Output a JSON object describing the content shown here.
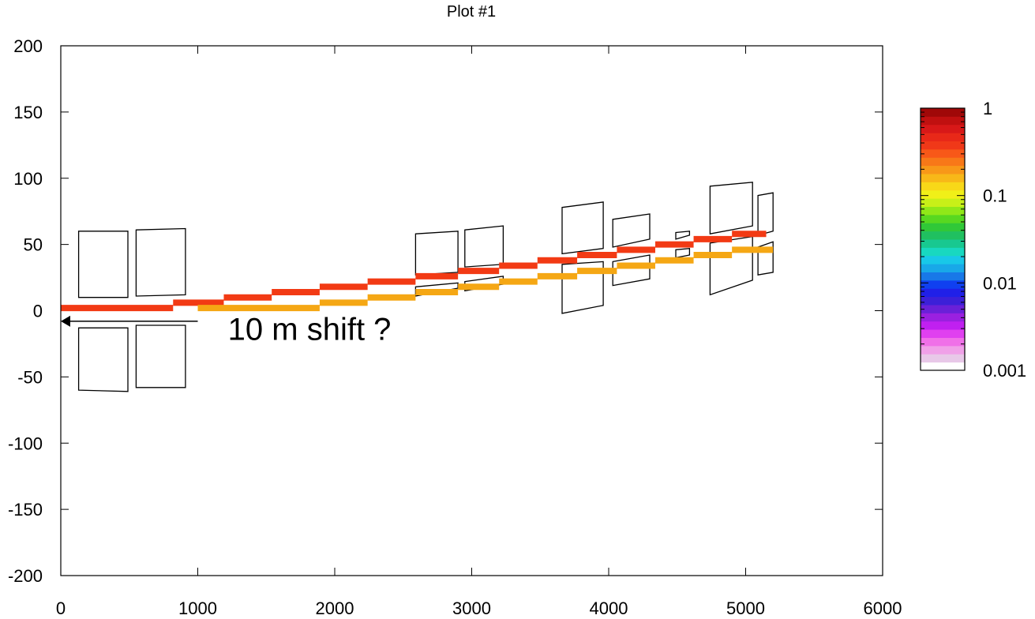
{
  "chart_data": {
    "type": "line",
    "title": "Plot #1",
    "xlabel": "",
    "ylabel": "",
    "xlim": [
      0,
      6000
    ],
    "ylim": [
      -200,
      200
    ],
    "x_ticks": [
      0,
      1000,
      2000,
      3000,
      4000,
      5000,
      6000
    ],
    "y_ticks": [
      200,
      150,
      100,
      50,
      0,
      -50,
      -100,
      -150,
      -200
    ],
    "grid": false,
    "legend": "none",
    "series": [
      {
        "color": "#f23a14",
        "style": "step",
        "segments": [
          {
            "x0": -50,
            "x1": 820,
            "y": 2
          },
          {
            "x0": 820,
            "x1": 1190,
            "y": 6
          },
          {
            "x0": 1190,
            "x1": 1540,
            "y": 10
          },
          {
            "x0": 1540,
            "x1": 1890,
            "y": 14
          },
          {
            "x0": 1890,
            "x1": 2240,
            "y": 18
          },
          {
            "x0": 2240,
            "x1": 2590,
            "y": 22
          },
          {
            "x0": 2590,
            "x1": 2900,
            "y": 26
          },
          {
            "x0": 2900,
            "x1": 3200,
            "y": 30
          },
          {
            "x0": 3200,
            "x1": 3480,
            "y": 34
          },
          {
            "x0": 3480,
            "x1": 3770,
            "y": 38
          },
          {
            "x0": 3770,
            "x1": 4060,
            "y": 42
          },
          {
            "x0": 4060,
            "x1": 4340,
            "y": 46
          },
          {
            "x0": 4340,
            "x1": 4620,
            "y": 50
          },
          {
            "x0": 4620,
            "x1": 4900,
            "y": 54
          },
          {
            "x0": 4900,
            "x1": 5150,
            "y": 58
          }
        ]
      },
      {
        "color": "#f5a714",
        "style": "step",
        "segments": [
          {
            "x0": 1000,
            "x1": 1890,
            "y": 2
          },
          {
            "x0": 1890,
            "x1": 2240,
            "y": 6
          },
          {
            "x0": 2240,
            "x1": 2590,
            "y": 10
          },
          {
            "x0": 2590,
            "x1": 2900,
            "y": 14
          },
          {
            "x0": 2900,
            "x1": 3200,
            "y": 18
          },
          {
            "x0": 3200,
            "x1": 3480,
            "y": 22
          },
          {
            "x0": 3480,
            "x1": 3770,
            "y": 26
          },
          {
            "x0": 3770,
            "x1": 4060,
            "y": 30
          },
          {
            "x0": 4060,
            "x1": 4340,
            "y": 34
          },
          {
            "x0": 4340,
            "x1": 4620,
            "y": 38
          },
          {
            "x0": 4620,
            "x1": 4900,
            "y": 42
          },
          {
            "x0": 4900,
            "x1": 5200,
            "y": 46
          }
        ]
      }
    ],
    "outlines": [
      {
        "points": [
          [
            130,
            60
          ],
          [
            490,
            60
          ],
          [
            490,
            10
          ],
          [
            130,
            10
          ]
        ]
      },
      {
        "points": [
          [
            550,
            61
          ],
          [
            910,
            62
          ],
          [
            910,
            12
          ],
          [
            550,
            11
          ]
        ]
      },
      {
        "points": [
          [
            130,
            -13
          ],
          [
            490,
            -13
          ],
          [
            490,
            -61
          ],
          [
            130,
            -60
          ]
        ]
      },
      {
        "points": [
          [
            550,
            -11
          ],
          [
            910,
            -11
          ],
          [
            910,
            -58
          ],
          [
            550,
            -58
          ]
        ]
      },
      {
        "points": [
          [
            2590,
            58
          ],
          [
            2900,
            60
          ],
          [
            2900,
            29
          ],
          [
            2590,
            27
          ]
        ]
      },
      {
        "points": [
          [
            2950,
            61
          ],
          [
            3230,
            64
          ],
          [
            3230,
            35
          ],
          [
            2950,
            33
          ]
        ]
      },
      {
        "points": [
          [
            2590,
            18
          ],
          [
            2900,
            21
          ],
          [
            2900,
            17
          ],
          [
            2590,
            11
          ]
        ]
      },
      {
        "points": [
          [
            2950,
            22
          ],
          [
            3230,
            26
          ],
          [
            3230,
            20
          ],
          [
            2950,
            15
          ]
        ]
      },
      {
        "points": [
          [
            3660,
            78
          ],
          [
            3960,
            82
          ],
          [
            3960,
            47
          ],
          [
            3660,
            43
          ]
        ]
      },
      {
        "points": [
          [
            3660,
            35
          ],
          [
            3960,
            37
          ],
          [
            3960,
            4
          ],
          [
            3660,
            -2
          ]
        ]
      },
      {
        "points": [
          [
            4030,
            69
          ],
          [
            4300,
            73
          ],
          [
            4300,
            54
          ],
          [
            4030,
            48
          ]
        ]
      },
      {
        "points": [
          [
            4030,
            37
          ],
          [
            4300,
            42
          ],
          [
            4300,
            24
          ],
          [
            4030,
            19
          ]
        ]
      },
      {
        "points": [
          [
            4490,
            59
          ],
          [
            4590,
            60
          ],
          [
            4590,
            57
          ],
          [
            4490,
            54
          ]
        ]
      },
      {
        "points": [
          [
            4490,
            46
          ],
          [
            4590,
            47
          ],
          [
            4590,
            42
          ],
          [
            4490,
            40
          ]
        ]
      },
      {
        "points": [
          [
            4740,
            94
          ],
          [
            5050,
            97
          ],
          [
            5050,
            64
          ],
          [
            4740,
            58
          ]
        ]
      },
      {
        "points": [
          [
            4740,
            51
          ],
          [
            5050,
            56
          ],
          [
            5050,
            23
          ],
          [
            4740,
            12
          ]
        ]
      },
      {
        "points": [
          [
            5200,
            89
          ],
          [
            5090,
            87
          ],
          [
            5090,
            57
          ],
          [
            5200,
            60
          ]
        ]
      },
      {
        "points": [
          [
            5200,
            52
          ],
          [
            5090,
            48
          ],
          [
            5090,
            27
          ],
          [
            5200,
            29
          ]
        ]
      }
    ],
    "annotations": [
      {
        "text": "10 m shift ?",
        "x": 1220,
        "y": -22
      },
      {
        "type": "arrow",
        "x_from": 1000,
        "y_from": -8,
        "x_to": 0,
        "y_to": -8
      }
    ],
    "colorbar": {
      "scale": "log",
      "range": [
        0.001,
        1
      ],
      "tick_labels": [
        "1",
        "0.1",
        "0.01",
        "0.001"
      ],
      "tick_values": [
        1,
        0.1,
        0.01,
        0.001
      ],
      "colors": [
        "#ffffff",
        "#e8c8e8",
        "#f0a0e8",
        "#f070e8",
        "#e040f0",
        "#c020f0",
        "#9a20e0",
        "#6a20d8",
        "#3c20d8",
        "#2020e8",
        "#1040f0",
        "#1878e8",
        "#18a8e8",
        "#18c8e8",
        "#18d8c0",
        "#18c890",
        "#20c060",
        "#30c838",
        "#58d820",
        "#90e818",
        "#c8f018",
        "#f0f018",
        "#f8d818",
        "#f8b818",
        "#f89818",
        "#f87818",
        "#f85818",
        "#f03818",
        "#e82818",
        "#d81818",
        "#c01010",
        "#a00808"
      ]
    }
  }
}
